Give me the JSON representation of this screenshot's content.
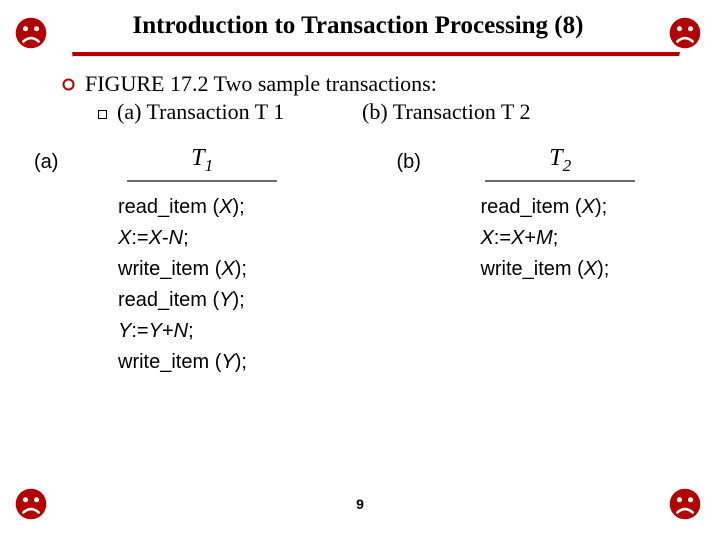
{
  "title": "Introduction to Transaction Processing (8)",
  "title_fontsize": 25,
  "figure_caption": "FIGURE 17.2 Two sample transactions:",
  "sub_a": "(a) Transaction T 1",
  "sub_b": "(b) Transaction T 2",
  "body_fontsize": 22,
  "divider_color": "#b00000",
  "divider_width": 4,
  "corner_icons": {
    "color": "#b00000",
    "size": 34,
    "symbol_tl": "sad-face",
    "symbol_tr": "sad-face",
    "symbol_bl": "sad-face",
    "symbol_br": "sad-face"
  },
  "bullet_circle": {
    "diameter": 12,
    "fill": "#ffffff",
    "stroke": "#b00000",
    "stroke_width": 2
  },
  "transactions": {
    "font": "Arial",
    "fontsize": 20,
    "label_fontsize": 20,
    "head_fontsize": 24,
    "italic_var_family": "Times New Roman",
    "a": {
      "panel_label": "(a)",
      "head_html": "T<sub>1</sub>",
      "ops": [
        "read_item (<i>X</i>);",
        "<i>X</i>:=<i>X</i>-<i>N</i>;",
        "write_item (<i>X</i>);",
        "read_item (<i>Y</i>);",
        "<i>Y</i>:=<i>Y</i>+<i>N</i>;",
        "write_item (<i>Y</i>);"
      ]
    },
    "b": {
      "panel_label": "(b)",
      "head_html": "T<sub>2</sub>",
      "ops": [
        "read_item (<i>X</i>);",
        "<i>X</i>:=<i>X</i>+<i>M</i>;",
        "write_item (<i>X</i>);"
      ]
    }
  },
  "page_number": "9",
  "page_number_fontsize": 14,
  "background_color": "#ffffff"
}
